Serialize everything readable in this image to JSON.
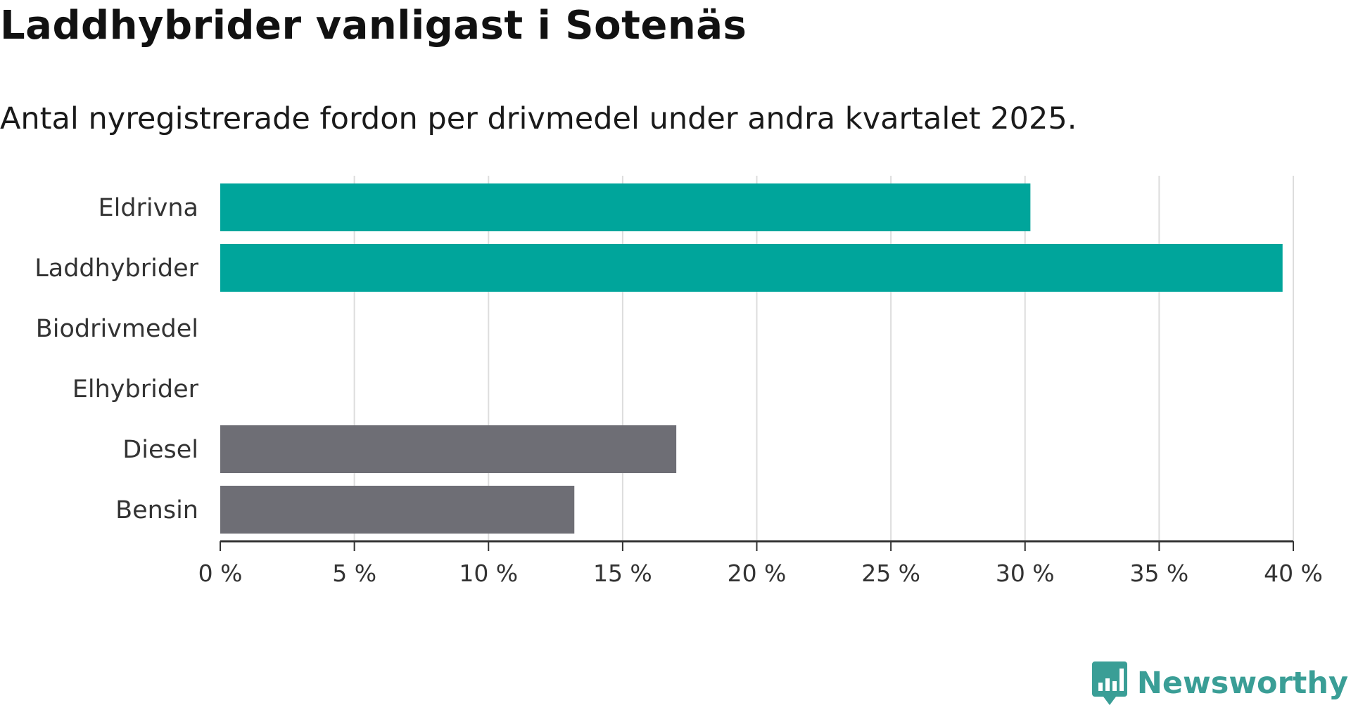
{
  "chart_data": {
    "type": "bar",
    "orientation": "horizontal",
    "title": "Laddhybrider vanligast i Sotenäs",
    "subtitle": "Antal nyregistrerade fordon per drivmedel under andra kvartalet 2025.",
    "categories": [
      "Eldrivna",
      "Laddhybrider",
      "Biodrivmedel",
      "Elhybrider",
      "Diesel",
      "Bensin"
    ],
    "values": [
      30.2,
      39.6,
      0,
      0,
      17.0,
      13.2
    ],
    "bar_colors": [
      "#00a59b",
      "#00a59b",
      "#00a59b",
      "#00a59b",
      "#6e6e75",
      "#6e6e75"
    ],
    "xlim": [
      0,
      40
    ],
    "x_ticks": [
      0,
      5,
      10,
      15,
      20,
      25,
      30,
      35,
      40
    ],
    "x_tick_labels": [
      "0 %",
      "5 %",
      "10 %",
      "15 %",
      "20 %",
      "25 %",
      "30 %",
      "35 %",
      "40 %"
    ],
    "grid": true,
    "colors": {
      "grid": "#dddddd",
      "axis": "#333333"
    }
  },
  "brand": {
    "name": "Newsworthy",
    "icon": "newsworthy-logo-icon",
    "color": "#3a9e96"
  }
}
